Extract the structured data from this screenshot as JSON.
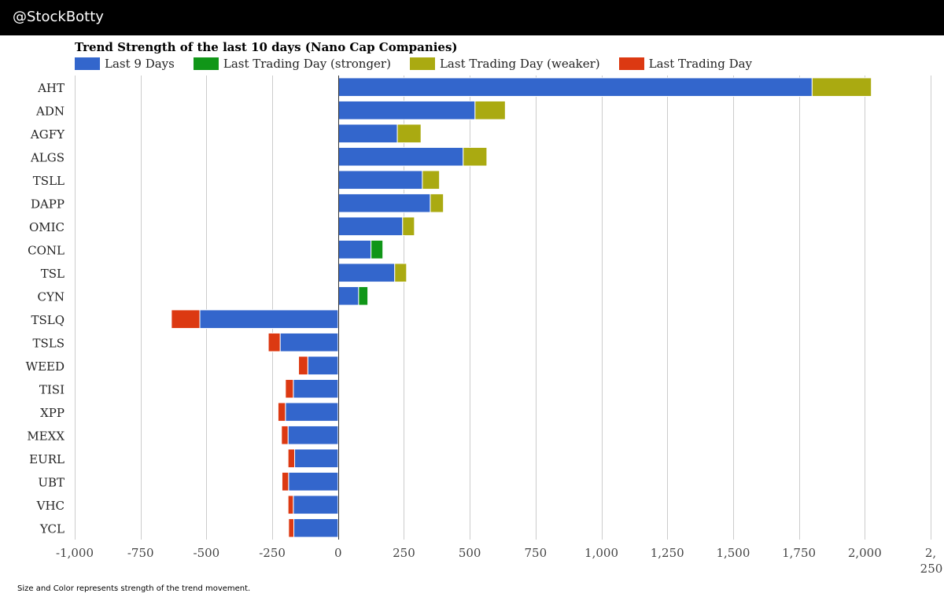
{
  "header": {
    "handle": "@StockBotty"
  },
  "colors": {
    "last9": "#3366cc",
    "stronger": "#109618",
    "weaker": "#aaaa11",
    "last_day": "#dc3912",
    "grid": "#cccccc",
    "axis": "#333333"
  },
  "legend": [
    {
      "label": "Last 9 Days",
      "color_key": "last9"
    },
    {
      "label": "Last Trading Day (stronger)",
      "color_key": "stronger"
    },
    {
      "label": "Last Trading Day (weaker)",
      "color_key": "weaker"
    },
    {
      "label": "Last Trading Day",
      "color_key": "last_day"
    }
  ],
  "footnote": "Size and Color represents strength of the trend movement.",
  "chart_data": {
    "type": "bar",
    "orientation": "horizontal",
    "stacked": true,
    "title": "Trend Strength of the last 10 days (Nano Cap Companies)",
    "categories": [
      "AHT",
      "ADN",
      "AGFY",
      "ALGS",
      "TSLL",
      "DAPP",
      "OMIC",
      "CONL",
      "TSL",
      "CYN",
      "TSLQ",
      "TSLS",
      "WEED",
      "TISI",
      "XPP",
      "MEXX",
      "EURL",
      "UBT",
      "VHC",
      "YCL"
    ],
    "series": [
      {
        "name": "Last 9 Days",
        "color_key": "last9",
        "values": [
          1800,
          520,
          225,
          475,
          320,
          350,
          245,
          125,
          215,
          78,
          -525,
          -220,
          -115,
          -170,
          -200,
          -190,
          -165,
          -188,
          -170,
          -168
        ]
      },
      {
        "name": "Last Trading Day (stronger)",
        "color_key": "stronger",
        "values": [
          0,
          0,
          0,
          0,
          0,
          0,
          0,
          45,
          0,
          35,
          0,
          0,
          0,
          0,
          0,
          0,
          0,
          0,
          0,
          0
        ]
      },
      {
        "name": "Last Trading Day (weaker)",
        "color_key": "weaker",
        "values": [
          225,
          115,
          90,
          90,
          65,
          50,
          45,
          0,
          45,
          0,
          0,
          0,
          0,
          0,
          0,
          0,
          0,
          0,
          0,
          0
        ]
      },
      {
        "name": "Last Trading Day",
        "color_key": "last_day",
        "values": [
          0,
          0,
          0,
          0,
          0,
          0,
          0,
          0,
          0,
          0,
          -108,
          -45,
          -35,
          -30,
          -28,
          -25,
          -25,
          -25,
          -20,
          -20
        ]
      }
    ],
    "xlim": [
      -1000,
      2250
    ],
    "xticks": [
      -1000,
      -750,
      -500,
      -250,
      0,
      250,
      500,
      750,
      1000,
      1250,
      1500,
      1750,
      2000
    ],
    "xtick_labels": [
      "-1,000",
      "-750",
      "-500",
      "-250",
      "0",
      "250",
      "500",
      "750",
      "1,000",
      "1,250",
      "1,500",
      "1,750",
      "2,000"
    ],
    "xtick_last_label_top": "2,",
    "xtick_last_label_bottom": "250",
    "grid": true,
    "legend_position": "top"
  }
}
